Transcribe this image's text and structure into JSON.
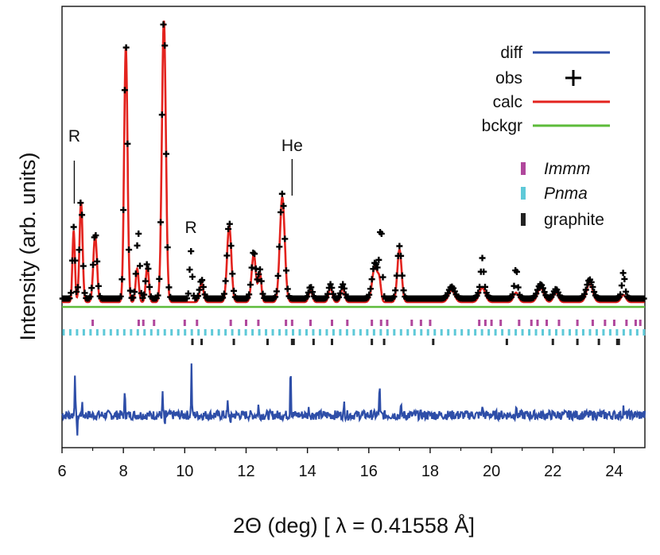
{
  "chart_data": {
    "type": "line",
    "xlabel": "2Θ (deg) [ λ = 0.41558 Å]",
    "ylabel": "Intensity (arb. units)",
    "xlim": [
      6,
      25
    ],
    "xticks": [
      "6",
      "8",
      "10",
      "12",
      "14",
      "16",
      "18",
      "20",
      "22",
      "24"
    ],
    "ylim": [
      0,
      1
    ],
    "yticks_shown": false,
    "grid": false,
    "legend_position": "top-right",
    "legend": [
      {
        "label": "diff",
        "color": "#2e4ea8",
        "marker": "line"
      },
      {
        "label": "obs",
        "color": "#000000",
        "marker": "plus"
      },
      {
        "label": "calc",
        "color": "#e3231e",
        "marker": "line"
      },
      {
        "label": "bckgr",
        "color": "#5dbb3a",
        "marker": "line"
      }
    ],
    "phase_legend": [
      {
        "label": "Immm",
        "color": "#b0479c",
        "italic": true
      },
      {
        "label": "Pnma",
        "color": "#5ec9d8",
        "italic": true
      },
      {
        "label": "graphite",
        "color": "#222222",
        "italic": false
      }
    ],
    "annotations": [
      {
        "text": "R",
        "x": 6.4
      },
      {
        "text": "R",
        "x": 10.2
      },
      {
        "text": "He",
        "x": 13.5
      }
    ],
    "background_level": 0.0,
    "peaks": [
      {
        "x": 6.38,
        "h": 0.3,
        "w": 0.04
      },
      {
        "x": 6.62,
        "h": 0.42,
        "w": 0.05
      },
      {
        "x": 7.08,
        "h": 0.28,
        "w": 0.06
      },
      {
        "x": 8.08,
        "h": 1.07,
        "w": 0.055
      },
      {
        "x": 8.45,
        "h": 0.14,
        "w": 0.05
      },
      {
        "x": 8.78,
        "h": 0.15,
        "w": 0.05
      },
      {
        "x": 9.32,
        "h": 1.18,
        "w": 0.065
      },
      {
        "x": 10.55,
        "h": 0.08,
        "w": 0.06
      },
      {
        "x": 11.45,
        "h": 0.32,
        "w": 0.07
      },
      {
        "x": 12.25,
        "h": 0.2,
        "w": 0.07
      },
      {
        "x": 12.45,
        "h": 0.12,
        "w": 0.05
      },
      {
        "x": 13.18,
        "h": 0.44,
        "w": 0.08
      },
      {
        "x": 14.1,
        "h": 0.05,
        "w": 0.06
      },
      {
        "x": 14.75,
        "h": 0.06,
        "w": 0.06
      },
      {
        "x": 15.15,
        "h": 0.06,
        "w": 0.06
      },
      {
        "x": 16.2,
        "h": 0.15,
        "w": 0.09
      },
      {
        "x": 16.35,
        "h": 0.07,
        "w": 0.05
      },
      {
        "x": 17.0,
        "h": 0.22,
        "w": 0.07
      },
      {
        "x": 18.7,
        "h": 0.05,
        "w": 0.1
      },
      {
        "x": 19.7,
        "h": 0.06,
        "w": 0.1
      },
      {
        "x": 20.8,
        "h": 0.04,
        "w": 0.08
      },
      {
        "x": 21.6,
        "h": 0.06,
        "w": 0.1
      },
      {
        "x": 22.1,
        "h": 0.04,
        "w": 0.08
      },
      {
        "x": 23.2,
        "h": 0.08,
        "w": 0.1
      },
      {
        "x": 24.3,
        "h": 0.03,
        "w": 0.08
      }
    ],
    "obs_extra": [
      {
        "x": 8.5,
        "h": 0.18
      },
      {
        "x": 10.2,
        "h": 0.2
      },
      {
        "x": 16.4,
        "h": 0.25
      },
      {
        "x": 19.7,
        "h": 0.11
      },
      {
        "x": 20.8,
        "h": 0.09
      },
      {
        "x": 24.3,
        "h": 0.08
      }
    ],
    "diff_spikes": [
      {
        "x": 6.42,
        "h": 0.55
      },
      {
        "x": 6.5,
        "h": -0.25
      },
      {
        "x": 6.65,
        "h": 0.15
      },
      {
        "x": 8.05,
        "h": 0.32
      },
      {
        "x": 9.28,
        "h": 0.28
      },
      {
        "x": 9.35,
        "h": -0.15
      },
      {
        "x": 10.22,
        "h": 0.62
      },
      {
        "x": 11.4,
        "h": 0.15
      },
      {
        "x": 11.5,
        "h": -0.12
      },
      {
        "x": 12.4,
        "h": 0.12
      },
      {
        "x": 13.45,
        "h": 0.72
      },
      {
        "x": 14.05,
        "h": 0.1
      },
      {
        "x": 15.2,
        "h": 0.15
      },
      {
        "x": 16.35,
        "h": 0.42
      },
      {
        "x": 17.05,
        "h": 0.1
      },
      {
        "x": 19.7,
        "h": 0.14
      },
      {
        "x": 20.8,
        "h": 0.12
      },
      {
        "x": 24.3,
        "h": 0.1
      }
    ],
    "tick_marks": {
      "Immm": [
        7.0,
        8.5,
        8.65,
        9.0,
        10.0,
        10.4,
        11.5,
        12.0,
        12.4,
        13.3,
        13.5,
        14.1,
        14.8,
        15.3,
        16.1,
        16.4,
        16.6,
        17.4,
        17.7,
        18.0,
        19.6,
        19.8,
        20.0,
        20.3,
        20.9,
        21.3,
        21.5,
        21.8,
        22.2,
        22.8,
        23.3,
        23.7,
        24.0,
        24.4,
        24.7,
        24.85
      ]
    }
  }
}
